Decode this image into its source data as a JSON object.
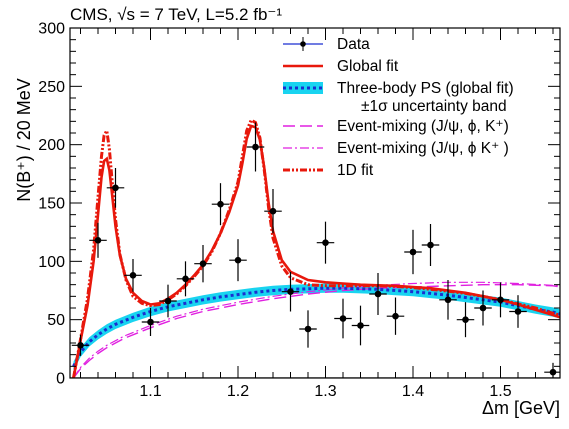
{
  "chart_data": {
    "type": "scatter",
    "title": "CMS, √s = 7 TeV, L=5.2 fb⁻¹",
    "xlabel": "Δm [GeV]",
    "ylabel": "N(B⁺) / 20 MeV",
    "xlim": [
      1.008,
      1.568
    ],
    "ylim": [
      0,
      300
    ],
    "x_ticks": [
      {
        "value": 1.1,
        "label": "1.1"
      },
      {
        "value": 1.2,
        "label": "1.2"
      },
      {
        "value": 1.3,
        "label": "1.3"
      },
      {
        "value": 1.4,
        "label": "1.4"
      },
      {
        "value": 1.5,
        "label": "1.5"
      }
    ],
    "y_ticks": [
      {
        "value": 0,
        "label": "0"
      },
      {
        "value": 50,
        "label": "50"
      },
      {
        "value": 100,
        "label": "100"
      },
      {
        "value": 150,
        "label": "150"
      },
      {
        "value": 200,
        "label": "200"
      },
      {
        "value": 250,
        "label": "250"
      },
      {
        "value": 300,
        "label": "300"
      }
    ],
    "legend_position": "top-right",
    "legend": [
      {
        "key": "data",
        "label": "Data"
      },
      {
        "key": "global",
        "label": "Global fit"
      },
      {
        "key": "ps",
        "label": "Three-body PS (global fit)"
      },
      {
        "key": "band",
        "label": "±1σ  uncertainty band"
      },
      {
        "key": "em1",
        "label": "Event-mixing (J/ψ, ϕ, K⁺)"
      },
      {
        "key": "em2",
        "label": "Event-mixing (J/ψ, ϕ K⁺ )"
      },
      {
        "key": "fit1d",
        "label": "1D fit"
      }
    ],
    "colors": {
      "data": "#000000",
      "global": "#e8180c",
      "ps": "#1a2fd0",
      "band": "#19d4f0",
      "em": "#e020e0",
      "fit1d": "#e8180c"
    },
    "series": [
      {
        "name": "Data",
        "type": "points",
        "x_err": 0.01,
        "points": [
          {
            "x": 1.02,
            "y": 28,
            "err": 9
          },
          {
            "x": 1.04,
            "y": 118,
            "err": 15
          },
          {
            "x": 1.06,
            "y": 163,
            "err": 17
          },
          {
            "x": 1.08,
            "y": 88,
            "err": 14
          },
          {
            "x": 1.1,
            "y": 48,
            "err": 12
          },
          {
            "x": 1.12,
            "y": 66,
            "err": 14
          },
          {
            "x": 1.14,
            "y": 85,
            "err": 15
          },
          {
            "x": 1.16,
            "y": 98,
            "err": 16
          },
          {
            "x": 1.18,
            "y": 149,
            "err": 18
          },
          {
            "x": 1.2,
            "y": 101,
            "err": 18
          },
          {
            "x": 1.22,
            "y": 198,
            "err": 21
          },
          {
            "x": 1.24,
            "y": 143,
            "err": 19
          },
          {
            "x": 1.26,
            "y": 74,
            "err": 17
          },
          {
            "x": 1.28,
            "y": 42,
            "err": 16
          },
          {
            "x": 1.3,
            "y": 116,
            "err": 18
          },
          {
            "x": 1.32,
            "y": 51,
            "err": 17
          },
          {
            "x": 1.34,
            "y": 45,
            "err": 17
          },
          {
            "x": 1.36,
            "y": 72,
            "err": 18
          },
          {
            "x": 1.38,
            "y": 53,
            "err": 16
          },
          {
            "x": 1.4,
            "y": 108,
            "err": 19
          },
          {
            "x": 1.42,
            "y": 114,
            "err": 18
          },
          {
            "x": 1.44,
            "y": 67,
            "err": 17
          },
          {
            "x": 1.46,
            "y": 50,
            "err": 15
          },
          {
            "x": 1.48,
            "y": 60,
            "err": 15
          },
          {
            "x": 1.5,
            "y": 67,
            "err": 15
          },
          {
            "x": 1.52,
            "y": 57,
            "err": 14
          },
          {
            "x": 1.56,
            "y": 5,
            "err": 8
          }
        ]
      },
      {
        "name": "Global fit",
        "type": "curve",
        "x": [
          1.012,
          1.02,
          1.028,
          1.035,
          1.04,
          1.044,
          1.047,
          1.05,
          1.053,
          1.056,
          1.06,
          1.065,
          1.072,
          1.08,
          1.09,
          1.1,
          1.11,
          1.12,
          1.13,
          1.14,
          1.15,
          1.16,
          1.17,
          1.18,
          1.19,
          1.2,
          1.205,
          1.21,
          1.215,
          1.22,
          1.225,
          1.23,
          1.235,
          1.24,
          1.25,
          1.26,
          1.28,
          1.3,
          1.32,
          1.34,
          1.36,
          1.38,
          1.4,
          1.42,
          1.44,
          1.46,
          1.48,
          1.5,
          1.52,
          1.54,
          1.56,
          1.568
        ],
        "y": [
          0,
          32,
          62,
          100,
          140,
          172,
          186,
          188,
          178,
          158,
          130,
          105,
          85,
          73,
          66,
          63,
          64,
          68,
          73,
          80,
          88,
          97,
          109,
          124,
          142,
          165,
          184,
          205,
          216,
          215,
          204,
          180,
          150,
          126,
          101,
          91,
          84,
          82,
          81,
          80,
          79.5,
          79,
          78,
          77,
          75,
          73,
          70,
          67,
          63,
          58.5,
          54,
          52
        ]
      },
      {
        "name": "Three-body PS (global fit)",
        "type": "curve",
        "x": [
          1.012,
          1.02,
          1.03,
          1.04,
          1.05,
          1.06,
          1.08,
          1.1,
          1.12,
          1.14,
          1.16,
          1.18,
          1.2,
          1.22,
          1.24,
          1.26,
          1.28,
          1.3,
          1.32,
          1.34,
          1.36,
          1.38,
          1.4,
          1.42,
          1.44,
          1.46,
          1.48,
          1.5,
          1.52,
          1.54,
          1.56,
          1.568
        ],
        "y": [
          10,
          22,
          31,
          37,
          42,
          46,
          52,
          57,
          61,
          64,
          67,
          69.5,
          71.5,
          73.5,
          75,
          76,
          76.5,
          77,
          77,
          76.5,
          76,
          75,
          74,
          72.5,
          71,
          69,
          67,
          65,
          62,
          59,
          56.5,
          55
        ]
      },
      {
        "name": "±1σ  uncertainty band",
        "type": "band",
        "half_width": 4
      },
      {
        "name": "Event-mixing (J/ψ, ϕ, K⁺)",
        "type": "curve",
        "x": [
          1.012,
          1.02,
          1.03,
          1.04,
          1.05,
          1.07,
          1.1,
          1.13,
          1.16,
          1.2,
          1.24,
          1.28,
          1.32,
          1.36,
          1.4,
          1.44,
          1.48,
          1.52,
          1.56,
          1.568
        ],
        "y": [
          0,
          8,
          15,
          21,
          26,
          34,
          43,
          51,
          57,
          63,
          68,
          72,
          75,
          77,
          78,
          79,
          80,
          80,
          79,
          78
        ]
      },
      {
        "name": "Event-mixing (J/ψ, ϕ K⁺ )",
        "type": "curve",
        "x": [
          1.012,
          1.02,
          1.03,
          1.04,
          1.05,
          1.07,
          1.1,
          1.13,
          1.16,
          1.2,
          1.24,
          1.28,
          1.32,
          1.36,
          1.4,
          1.44,
          1.48,
          1.52,
          1.56,
          1.568
        ],
        "y": [
          0,
          9,
          17,
          23,
          28,
          36,
          45,
          53,
          59,
          65,
          70,
          74,
          77,
          79.5,
          81,
          82,
          82,
          81,
          79.5,
          79
        ]
      },
      {
        "name": "1D fit",
        "type": "curve",
        "x": [
          1.012,
          1.02,
          1.028,
          1.035,
          1.04,
          1.044,
          1.047,
          1.05,
          1.053,
          1.056,
          1.06,
          1.065,
          1.072,
          1.08,
          1.09,
          1.1,
          1.11,
          1.12,
          1.13,
          1.14,
          1.15,
          1.16,
          1.17,
          1.18,
          1.19,
          1.2,
          1.205,
          1.21,
          1.215,
          1.22,
          1.225,
          1.23,
          1.235,
          1.24,
          1.25,
          1.26,
          1.28,
          1.3,
          1.32,
          1.34,
          1.36,
          1.38,
          1.4,
          1.42,
          1.44,
          1.46,
          1.48,
          1.5,
          1.52,
          1.54,
          1.56,
          1.568
        ],
        "y": [
          0,
          33,
          68,
          110,
          155,
          190,
          208,
          212,
          196,
          170,
          136,
          106,
          84,
          70,
          64,
          62,
          63,
          67,
          72,
          79,
          87,
          96,
          108,
          124,
          144,
          168,
          190,
          212,
          221,
          219,
          206,
          178,
          146,
          120,
          96,
          86,
          80,
          79,
          79,
          79,
          79,
          78.5,
          77.5,
          76,
          74.5,
          72.5,
          70,
          67,
          63.5,
          60,
          55.5,
          54
        ]
      }
    ]
  }
}
